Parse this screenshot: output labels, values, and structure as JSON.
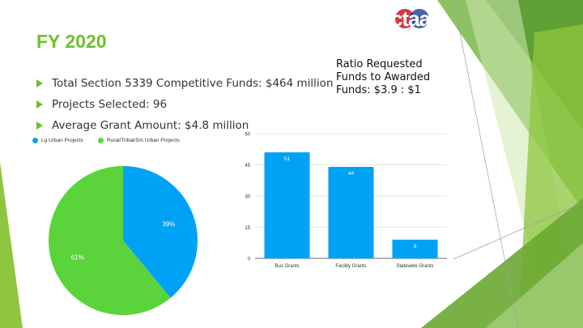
{
  "slide": {
    "title": "FY 2020",
    "bullets": [
      "Total Section 5339 Competitive Funds: $464 million",
      "Projects Selected: 96",
      "Average Grant Amount: $4.8 million"
    ],
    "ratio_text": "Ratio Requested Funds to Awarded Funds: $3.9 : $1",
    "logo_text": "ctaa"
  },
  "colors": {
    "accent_green": "#6fbf2a",
    "pie_blue": "#00a2f6",
    "pie_green": "#5bd43c",
    "bar_blue": "#00a2f6"
  },
  "chart_data": [
    {
      "type": "pie",
      "legend": [
        "Lg Urban Projects",
        "Rural/Tribal/Sm Urban Projects"
      ],
      "legend_placement": "top-left",
      "slices": [
        {
          "name": "Lg Urban Projects",
          "value": 39,
          "label": "39%"
        },
        {
          "name": "Rural/Tribal/Sm Urban Projects",
          "value": 61,
          "label": "61%"
        }
      ]
    },
    {
      "type": "bar",
      "categories": [
        "Bus Grants",
        "Facility Grants",
        "Statewide Grants"
      ],
      "values": [
        51,
        44,
        9
      ],
      "yticks": [
        "0",
        "15",
        "30",
        "45",
        "60"
      ],
      "ylim": [
        0,
        60
      ],
      "grid": true,
      "title": "",
      "xlabel": "",
      "ylabel": ""
    }
  ]
}
